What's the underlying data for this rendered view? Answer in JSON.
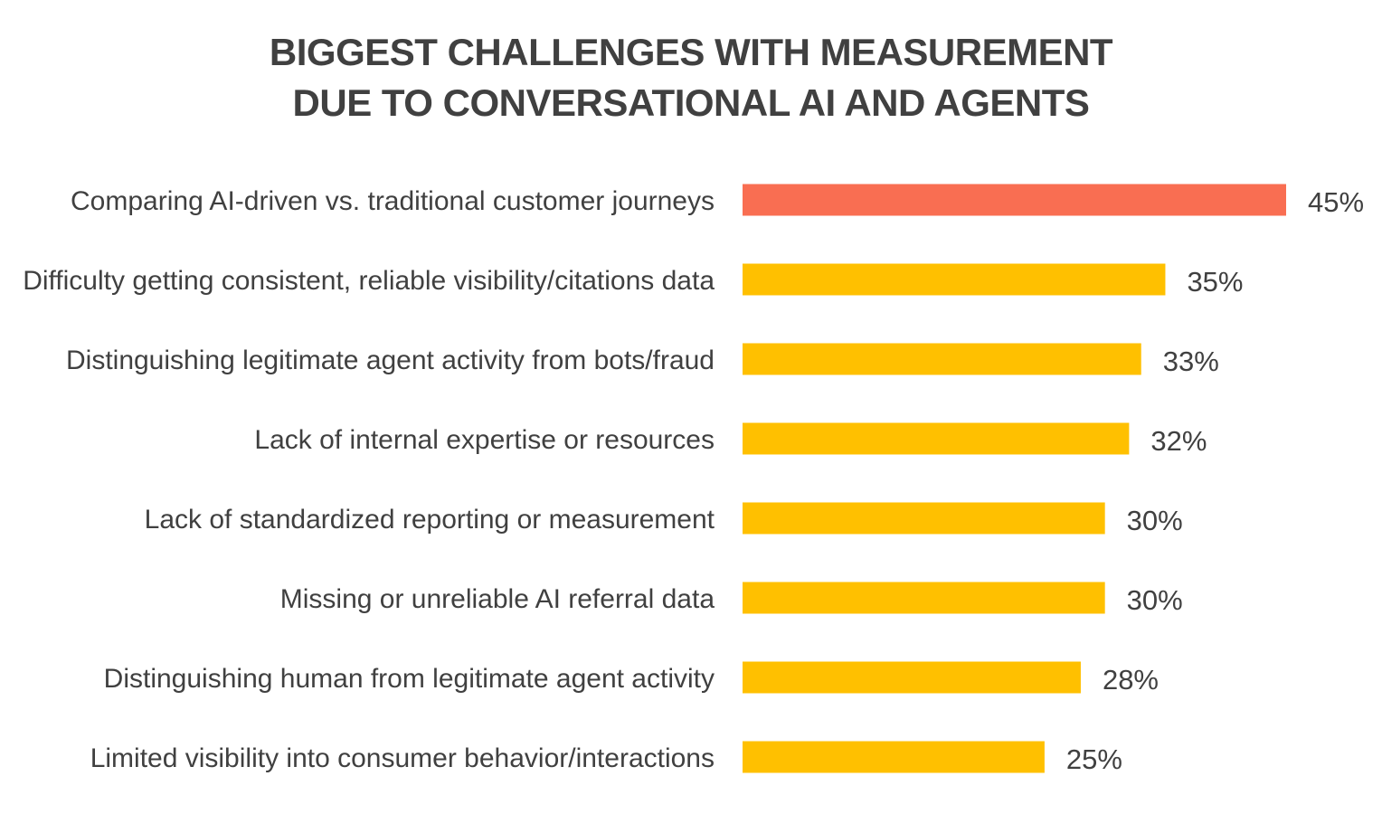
{
  "chart_data": {
    "type": "bar",
    "orientation": "horizontal",
    "title_lines": [
      "BIGGEST CHALLENGES WITH MEASUREMENT",
      "DUE TO CONVERSATIONAL AI AND AGENTS"
    ],
    "categories": [
      "Comparing AI-driven vs. traditional customer journeys",
      "Difficulty getting consistent, reliable visibility/citations data",
      "Distinguishing legitimate agent activity from bots/fraud",
      "Lack of internal expertise or resources",
      "Lack of standardized reporting or measurement",
      "Missing or unreliable AI referral data",
      "Distinguishing human from legitimate agent activity",
      "Limited visibility into consumer behavior/interactions"
    ],
    "values": [
      45,
      35,
      33,
      32,
      30,
      30,
      28,
      25
    ],
    "value_labels": [
      "45%",
      "35%",
      "33%",
      "32%",
      "30%",
      "30%",
      "28%",
      "25%"
    ],
    "highlight_index": 0,
    "colors": {
      "highlight": "#F96E52",
      "bar": "#FFC000",
      "text": "#404040"
    },
    "xlim": [
      0,
      45
    ],
    "grid": false,
    "legend": "none"
  }
}
